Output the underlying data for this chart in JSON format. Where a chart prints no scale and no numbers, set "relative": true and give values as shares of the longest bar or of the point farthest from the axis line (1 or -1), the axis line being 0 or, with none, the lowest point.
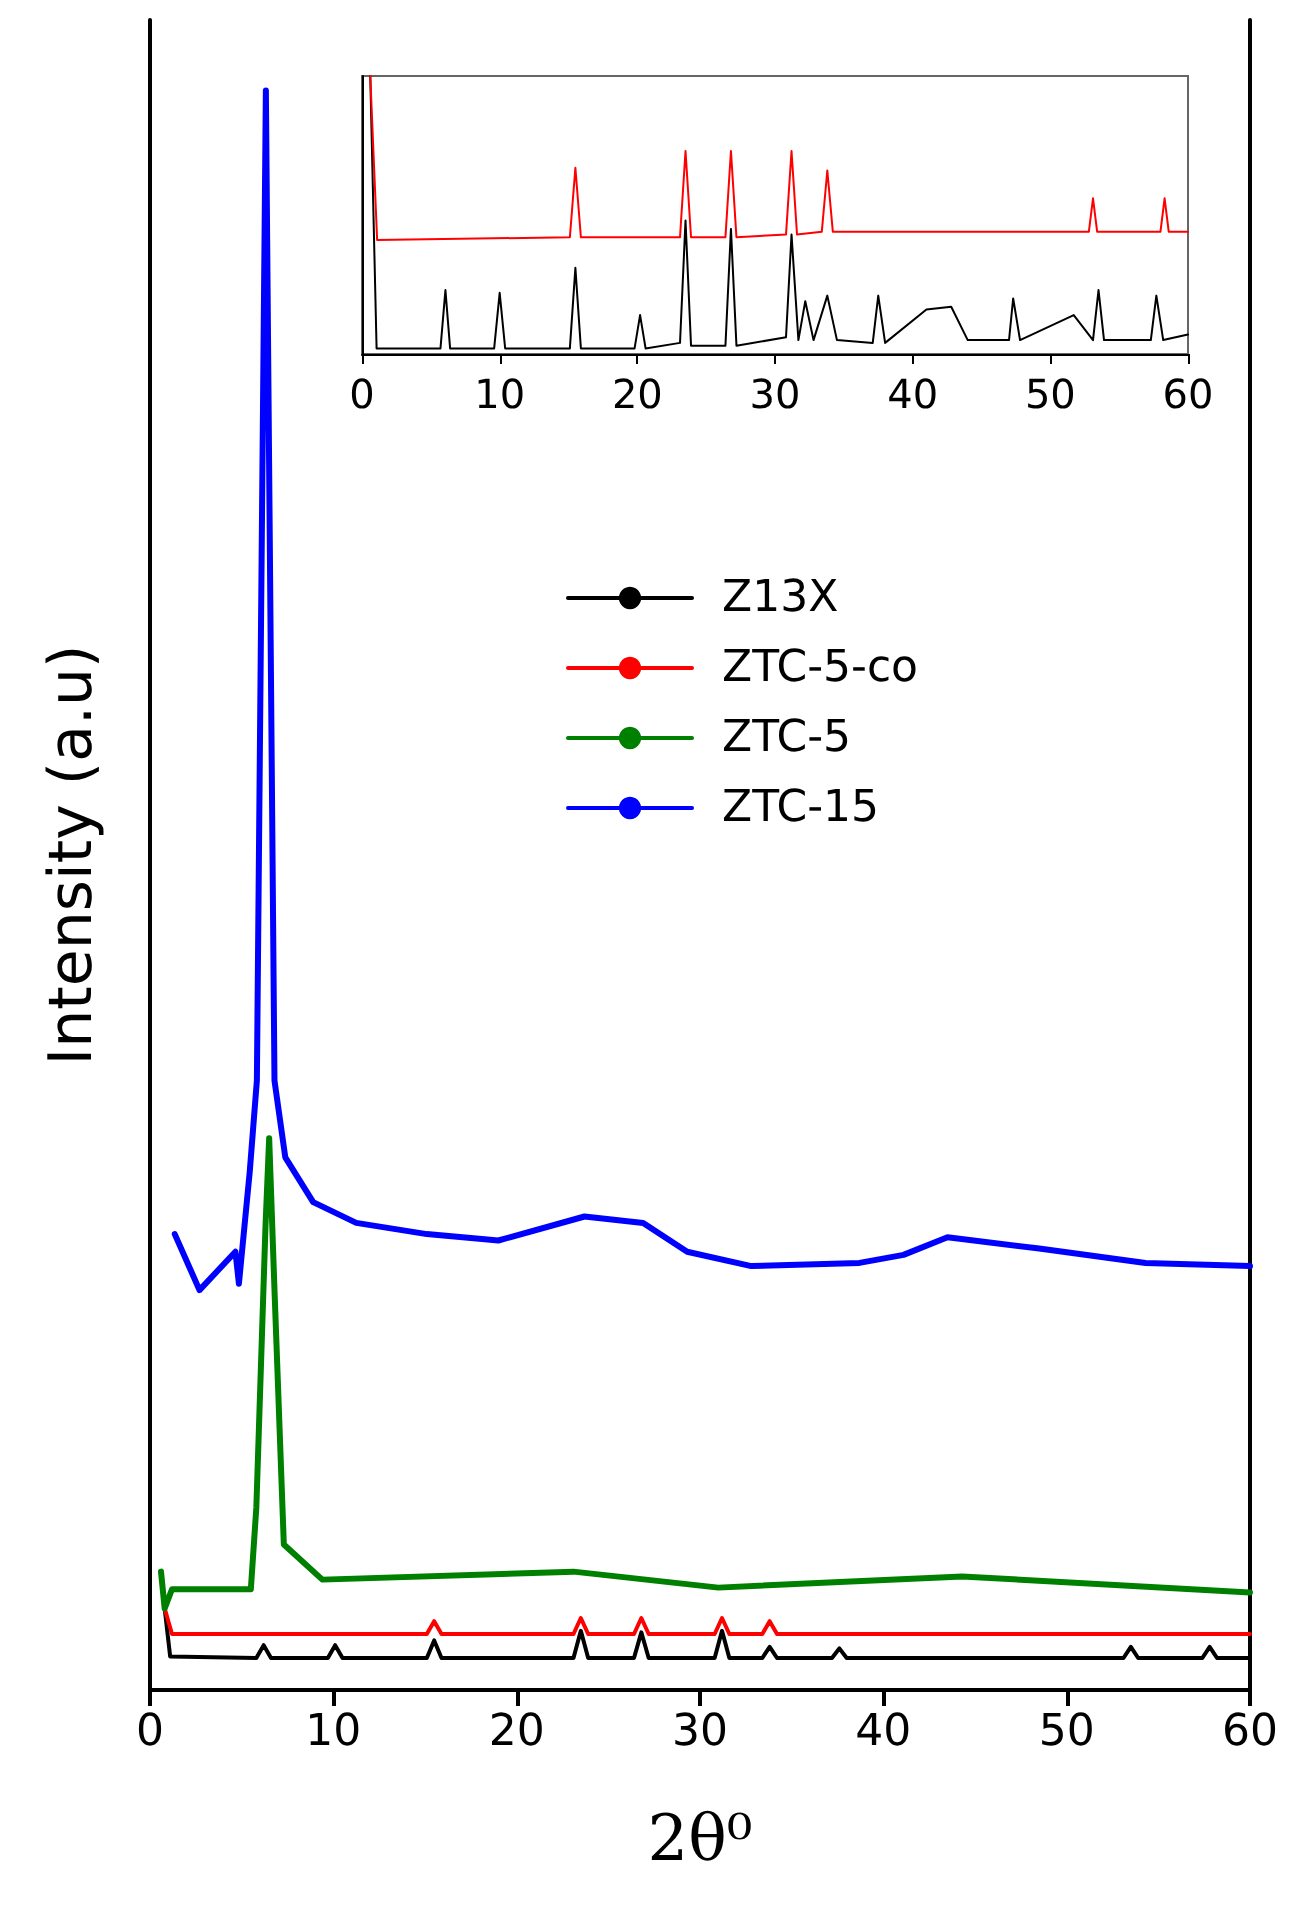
{
  "chart_data": [
    {
      "type": "line",
      "relative": true,
      "xlabel": "2θ⁰",
      "ylabel": "Intensity (a.u)",
      "xlim": [
        0,
        60
      ],
      "xticks": [
        0,
        10,
        20,
        30,
        40,
        50,
        60
      ],
      "legend": "top right",
      "marker": "none",
      "line_style": "solid",
      "series": [
        {
          "name": "Z13X",
          "color": "#000000",
          "x": [
            0.8,
            1.1,
            5.8,
            6.2,
            6.6,
            9.7,
            10.1,
            10.5,
            15.1,
            15.5,
            15.9,
            23.1,
            23.5,
            23.9,
            26.4,
            26.8,
            27.2,
            30.8,
            31.2,
            31.6,
            33.4,
            33.8,
            34.2,
            37.2,
            37.6,
            38,
            53.1,
            53.5,
            53.9,
            57.4,
            57.8,
            58.2,
            60
          ],
          "values": [
            0.051,
            0.021,
            0.02,
            0.028,
            0.02,
            0.02,
            0.028,
            0.02,
            0.02,
            0.031,
            0.02,
            0.02,
            0.037,
            0.02,
            0.02,
            0.036,
            0.02,
            0.02,
            0.037,
            0.02,
            0.02,
            0.027,
            0.02,
            0.02,
            0.026,
            0.02,
            0.02,
            0.027,
            0.02,
            0.02,
            0.027,
            0.02,
            0.02
          ]
        },
        {
          "name": "ZTC-5-co",
          "color": "#ff0000",
          "x": [
            0.8,
            1.2,
            15.1,
            15.5,
            15.9,
            23.1,
            23.5,
            23.9,
            26.4,
            26.8,
            27.2,
            30.8,
            31.2,
            31.6,
            33.4,
            33.8,
            34.2,
            60
          ],
          "values": [
            0.051,
            0.035,
            0.035,
            0.043,
            0.035,
            0.035,
            0.045,
            0.035,
            0.035,
            0.045,
            0.035,
            0.035,
            0.045,
            0.035,
            0.035,
            0.043,
            0.035,
            0.035
          ]
        },
        {
          "name": "ZTC-5",
          "color": "#008000",
          "x": [
            0.6,
            0.8,
            1.2,
            5.5,
            5.8,
            6.3,
            6.5,
            6.8,
            7.3,
            9.4,
            23.1,
            31,
            44.3,
            60
          ],
          "values": [
            0.074,
            0.051,
            0.063,
            0.063,
            0.114,
            0.29,
            0.345,
            0.247,
            0.091,
            0.069,
            0.074,
            0.064,
            0.071,
            0.061
          ]
        },
        {
          "name": "ZTC-15",
          "color": "#0000ff",
          "x": [
            1.35,
            2.7,
            4.66,
            4.85,
            5.44,
            5.83,
            6.32,
            6.79,
            7.38,
            8.9,
            11.25,
            15.1,
            19,
            23.7,
            26.9,
            29.3,
            32.8,
            38.7,
            41.1,
            43.5,
            48.5,
            54.3,
            60
          ],
          "values": [
            0.285,
            0.25,
            0.274,
            0.254,
            0.324,
            0.381,
            1.0,
            0.381,
            0.333,
            0.305,
            0.292,
            0.285,
            0.281,
            0.296,
            0.292,
            0.274,
            0.265,
            0.267,
            0.272,
            0.283,
            0.276,
            0.267,
            0.265
          ]
        }
      ]
    },
    {
      "type": "line",
      "relative": true,
      "xlim": [
        0,
        60
      ],
      "xticks": [
        0,
        10,
        20,
        30,
        40,
        50,
        60
      ],
      "marker": "none",
      "line_style": "solid",
      "series": [
        {
          "color": "#000000",
          "x": [
            0.6,
            1.06,
            5.7,
            6.06,
            6.4,
            9.6,
            10,
            10.4,
            15.1,
            15.5,
            15.9,
            19.8,
            20.2,
            20.6,
            23.1,
            23.5,
            23.9,
            26.4,
            26.8,
            27.2,
            30.8,
            31.2,
            31.7,
            32.2,
            32.8,
            33.8,
            34.5,
            37.1,
            37.5,
            38,
            41,
            42.8,
            44,
            47,
            47.3,
            47.8,
            51.7,
            53.1,
            53.5,
            53.9,
            57.3,
            57.7,
            58.2,
            60
          ],
          "values": [
            1.0,
            0.02,
            0.02,
            0.23,
            0.02,
            0.02,
            0.22,
            0.02,
            0.02,
            0.31,
            0.02,
            0.02,
            0.14,
            0.02,
            0.04,
            0.48,
            0.03,
            0.03,
            0.45,
            0.03,
            0.06,
            0.43,
            0.05,
            0.19,
            0.05,
            0.21,
            0.05,
            0.04,
            0.21,
            0.04,
            0.16,
            0.17,
            0.05,
            0.05,
            0.2,
            0.05,
            0.14,
            0.05,
            0.23,
            0.05,
            0.05,
            0.21,
            0.05,
            0.07
          ]
        },
        {
          "color": "#ff0000",
          "x": [
            0.6,
            1.1,
            15.1,
            15.5,
            15.9,
            23.1,
            23.5,
            23.9,
            26.4,
            26.8,
            27.2,
            30.8,
            31.2,
            31.6,
            33.4,
            33.8,
            34.2,
            44,
            52.8,
            53.1,
            53.4,
            58,
            58.3,
            58.6,
            60
          ],
          "values": [
            1.0,
            0.41,
            0.42,
            0.67,
            0.42,
            0.42,
            0.73,
            0.42,
            0.42,
            0.73,
            0.42,
            0.43,
            0.73,
            0.43,
            0.44,
            0.66,
            0.44,
            0.44,
            0.44,
            0.56,
            0.44,
            0.44,
            0.56,
            0.44,
            0.44
          ]
        }
      ]
    }
  ]
}
